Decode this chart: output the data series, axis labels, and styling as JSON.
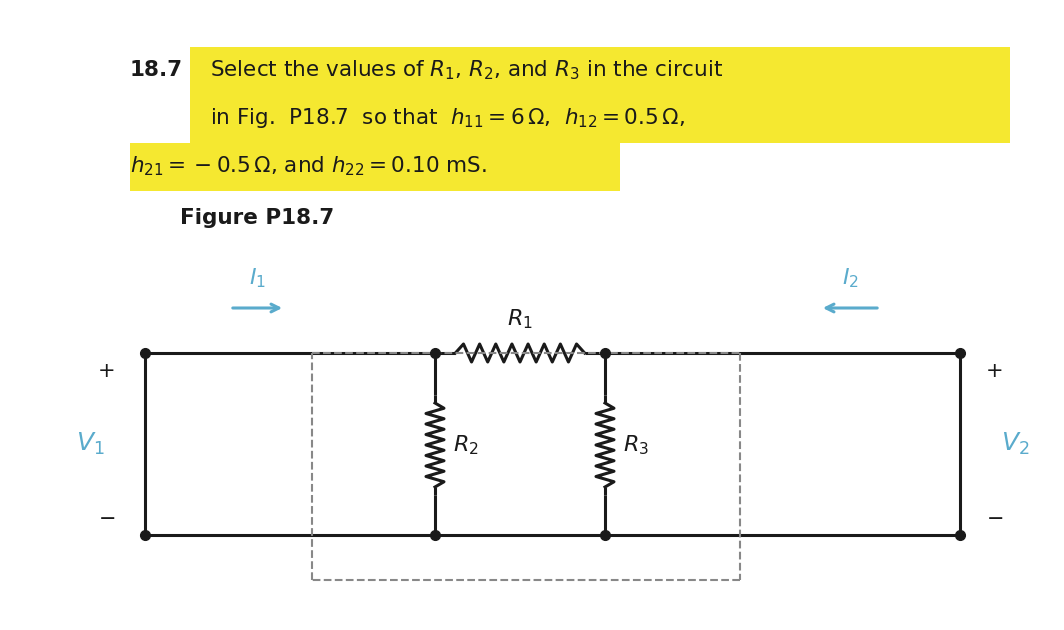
{
  "background_color": "#ffffff",
  "highlight_color": "#f5e830",
  "text_color": "#1a1a1a",
  "circuit_color": "#1a1a1a",
  "label_color": "#5aabcc",
  "node_color": "#1a1a1a",
  "dashed_color": "#888888",
  "title_number": "18.7",
  "figure_label": "Figure P18.7"
}
